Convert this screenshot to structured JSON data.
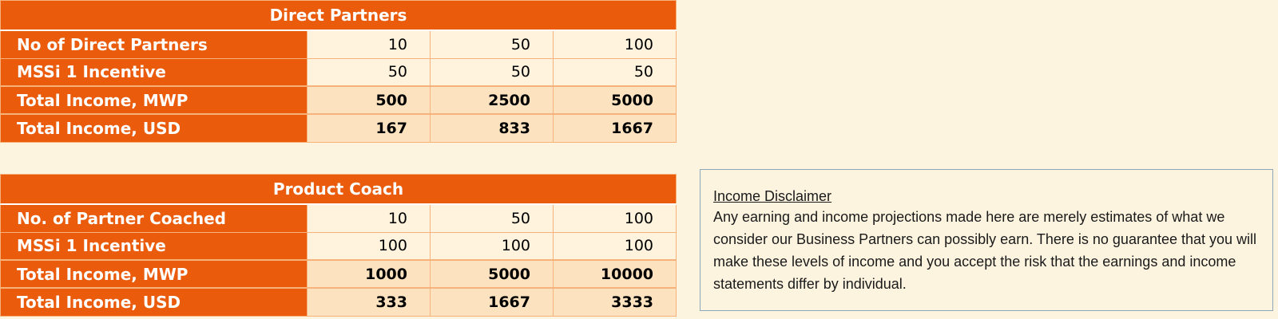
{
  "direct_partners": {
    "title": "Direct Partners",
    "rows": [
      {
        "label": "No of Direct Partners",
        "values": [
          "10",
          "50",
          "100"
        ],
        "total": false
      },
      {
        "label": "MSSi 1 Incentive",
        "values": [
          "50",
          "50",
          "50"
        ],
        "total": false
      },
      {
        "label": "Total Income, MWP",
        "values": [
          "500",
          "2500",
          "5000"
        ],
        "total": true
      },
      {
        "label": "Total Income, USD",
        "values": [
          "167",
          "833",
          "1667"
        ],
        "total": true
      }
    ]
  },
  "product_coach": {
    "title": "Product Coach",
    "rows": [
      {
        "label": "No. of Partner Coached",
        "values": [
          "10",
          "50",
          "100"
        ],
        "total": false
      },
      {
        "label": "MSSi 1 Incentive",
        "values": [
          "100",
          "100",
          "100"
        ],
        "total": false
      },
      {
        "label": "Total Income, MWP",
        "values": [
          "1000",
          "5000",
          "10000"
        ],
        "total": true
      },
      {
        "label": "Total Income, USD",
        "values": [
          "333",
          "1667",
          "3333"
        ],
        "total": true
      }
    ]
  },
  "disclaimer": {
    "title": "Income Disclaimer",
    "body": "Any earning and income projections made here are merely estimates of what we consider our Business Partners can possibly earn. There is no guarantee that you will make these levels of income and you accept the risk that the earnings and income statements differ by individual."
  },
  "colors": {
    "header_orange": "#ea5b0c",
    "cell_cream": "#fff3dd",
    "total_peach": "#fde2bf",
    "page_background": "#fdf4e0",
    "disclaimer_border": "#8fa5b8"
  }
}
